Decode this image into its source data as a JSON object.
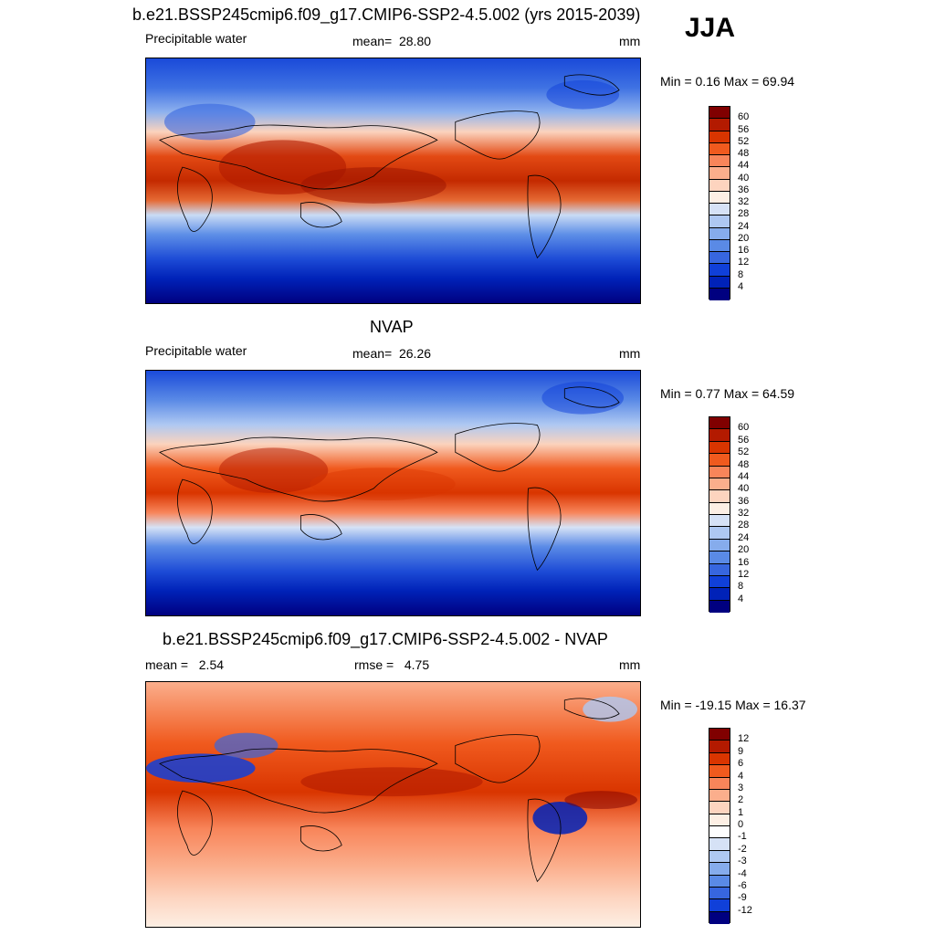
{
  "season": "JJA",
  "units": "mm",
  "panels": [
    {
      "title": "b.e21.BSSP245cmip6.f09_g17.CMIP6-SSP2-4.5.002 (yrs 2015-2039)",
      "variable": "Precipitable water",
      "stat_label": "mean=",
      "stat_value": "28.80",
      "units": "mm",
      "minmax": "Min =   0.16 Max =  69.94",
      "levels": [
        "60",
        "56",
        "52",
        "48",
        "44",
        "40",
        "36",
        "32",
        "28",
        "24",
        "20",
        "16",
        "12",
        "8",
        "4"
      ],
      "colors": [
        "#800000",
        "#b31a00",
        "#d93500",
        "#f05a1e",
        "#f8855a",
        "#fbae8c",
        "#fdd4bf",
        "#fdefe4",
        "#d6e2f6",
        "#aec8f2",
        "#86acec",
        "#5a8ae6",
        "#3766df",
        "#1040d9",
        "#0022b8",
        "#000080"
      ]
    },
    {
      "title": "NVAP",
      "variable": "Precipitable water",
      "stat_label": "mean=",
      "stat_value": "26.26",
      "units": "mm",
      "minmax": "Min =   0.77 Max =  64.59",
      "levels": [
        "60",
        "56",
        "52",
        "48",
        "44",
        "40",
        "36",
        "32",
        "28",
        "24",
        "20",
        "16",
        "12",
        "8",
        "4"
      ],
      "colors": [
        "#800000",
        "#b31a00",
        "#d93500",
        "#f05a1e",
        "#f8855a",
        "#fbae8c",
        "#fdd4bf",
        "#fdefe4",
        "#d6e2f6",
        "#aec8f2",
        "#86acec",
        "#5a8ae6",
        "#3766df",
        "#1040d9",
        "#0022b8",
        "#000080"
      ]
    },
    {
      "title": "b.e21.BSSP245cmip6.f09_g17.CMIP6-SSP2-4.5.002 - NVAP",
      "variable": "mean =",
      "stat_label": "rmse =",
      "stat_value": "4.75",
      "mean_value": "2.54",
      "units": "mm",
      "minmax": "Min = -19.15 Max =  16.37",
      "levels": [
        "12",
        "9",
        "6",
        "4",
        "3",
        "2",
        "1",
        "0",
        "-1",
        "-2",
        "-3",
        "-4",
        "-6",
        "-9",
        "-12"
      ],
      "colors": [
        "#800000",
        "#b31a00",
        "#d93500",
        "#f05a1e",
        "#f8855a",
        "#fbae8c",
        "#fdd4bf",
        "#fdefe4",
        "#fdfdfd",
        "#d6e2f6",
        "#aec8f2",
        "#86acec",
        "#5a8ae6",
        "#3766df",
        "#1040d9",
        "#000080"
      ]
    }
  ]
}
